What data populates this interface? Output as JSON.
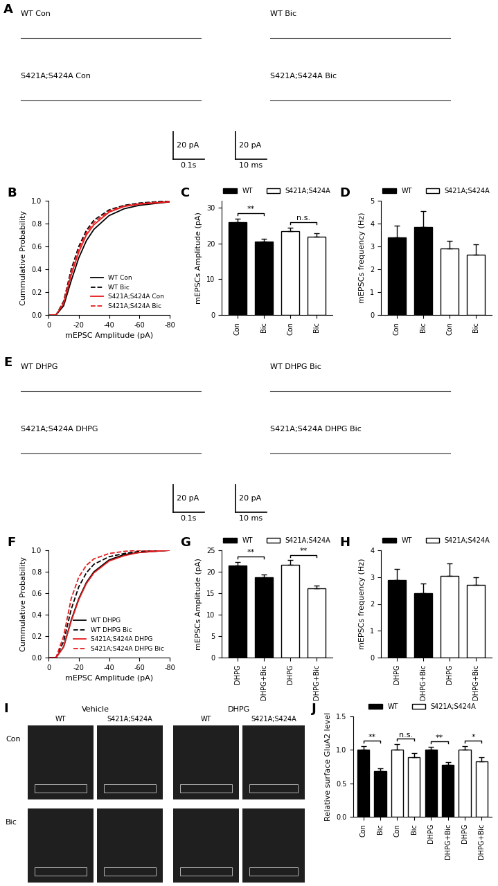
{
  "chart_data": [
    {
      "panel": "B",
      "type": "line",
      "x": [
        0,
        -5,
        -10,
        -15,
        -20,
        -25,
        -30,
        -40,
        -50,
        -60,
        -80
      ],
      "series": [
        {
          "name": "WT Con",
          "color": "#000000",
          "line_style": "solid",
          "values": [
            0,
            0,
            0.08,
            0.3,
            0.5,
            0.65,
            0.75,
            0.87,
            0.93,
            0.96,
            0.99
          ]
        },
        {
          "name": "WT Bic",
          "color": "#000000",
          "line_style": "dashed",
          "values": [
            0,
            0,
            0.12,
            0.4,
            0.6,
            0.74,
            0.83,
            0.92,
            0.96,
            0.98,
            1.0
          ]
        },
        {
          "name": "S421A;S424A Con",
          "color": "#e41a1c",
          "line_style": "solid",
          "values": [
            0,
            0,
            0.1,
            0.35,
            0.55,
            0.7,
            0.79,
            0.9,
            0.95,
            0.97,
            0.99
          ]
        },
        {
          "name": "S421A;S424A Bic",
          "color": "#e41a1c",
          "line_style": "dashed",
          "values": [
            0,
            0,
            0.11,
            0.38,
            0.58,
            0.72,
            0.81,
            0.91,
            0.955,
            0.975,
            0.995
          ]
        }
      ],
      "xlim": [
        0,
        -80
      ],
      "xticks": [
        0,
        -20,
        -40,
        -60,
        -80
      ],
      "ylim": [
        0,
        1.0
      ],
      "yticks": [
        {
          "value": 0,
          "label": "0.0"
        },
        0.2,
        0.4,
        0.6,
        0.8,
        {
          "value": 1,
          "label": "1.0"
        }
      ],
      "xlabel": "mEPSC Amplitude (pA)",
      "ylabel": "Cummulative Probability",
      "legend": "lower right"
    },
    {
      "panel": "C",
      "type": "bar",
      "categories": [
        "Con",
        "Bic",
        "Con",
        "Bic"
      ],
      "series": [
        {
          "name": "WT",
          "color": "#000000",
          "values": [
            26.0,
            20.5,
            null,
            null
          ],
          "errors": [
            1.0,
            0.8,
            null,
            null
          ]
        },
        {
          "name": "S421A;S424A",
          "color": "#ffffff",
          "values": [
            null,
            null,
            23.5,
            22.0
          ],
          "errors": [
            null,
            null,
            0.9,
            0.8
          ]
        }
      ],
      "ylim": [
        0,
        32
      ],
      "yticks": [
        0,
        10,
        20,
        30
      ],
      "ylabel": "mEPSCs Amplitude (pA)",
      "legend": "top",
      "annotations": [
        {
          "text": "**",
          "pair": [
            0,
            1
          ]
        },
        {
          "text": "n.s.",
          "pair": [
            2,
            3
          ]
        }
      ]
    },
    {
      "panel": "D",
      "type": "bar",
      "categories": [
        "Con",
        "Bic",
        "Con",
        "Bic"
      ],
      "series": [
        {
          "name": "WT",
          "color": "#000000",
          "values": [
            3.4,
            3.85,
            null,
            null
          ],
          "errors": [
            0.5,
            0.7,
            null,
            null
          ]
        },
        {
          "name": "S421A;S424A",
          "color": "#ffffff",
          "values": [
            null,
            null,
            2.9,
            2.65
          ],
          "errors": [
            null,
            null,
            0.35,
            0.45
          ]
        }
      ],
      "ylim": [
        0,
        5
      ],
      "yticks": [
        0,
        1,
        2,
        3,
        4,
        5
      ],
      "ylabel": "mEPSCs frequency (Hz)",
      "legend": "top"
    },
    {
      "panel": "F",
      "type": "line",
      "x": [
        0,
        -5,
        -10,
        -15,
        -20,
        -25,
        -30,
        -40,
        -50,
        -60,
        -80
      ],
      "series": [
        {
          "name": "WT DHPG",
          "color": "#000000",
          "line_style": "solid",
          "values": [
            0,
            0,
            0.1,
            0.35,
            0.55,
            0.7,
            0.8,
            0.91,
            0.96,
            0.98,
            1.0
          ]
        },
        {
          "name": "WT DHPG Bic",
          "color": "#000000",
          "line_style": "dashed",
          "values": [
            0,
            0,
            0.15,
            0.45,
            0.66,
            0.79,
            0.87,
            0.94,
            0.97,
            0.99,
            1.0
          ]
        },
        {
          "name": "S421A;S424A DHPG",
          "color": "#e41a1c",
          "line_style": "solid",
          "values": [
            0,
            0,
            0.1,
            0.34,
            0.54,
            0.69,
            0.79,
            0.9,
            0.95,
            0.98,
            1.0
          ]
        },
        {
          "name": "S421A;S424A DHPG Bic",
          "color": "#e41a1c",
          "line_style": "dashed",
          "values": [
            0,
            0,
            0.2,
            0.55,
            0.75,
            0.86,
            0.92,
            0.97,
            0.99,
            1.0,
            1.0
          ]
        }
      ],
      "xlim": [
        0,
        -80
      ],
      "xticks": [
        0,
        -20,
        -40,
        -60,
        -80
      ],
      "ylim": [
        0,
        1.0
      ],
      "yticks": [
        {
          "value": 0,
          "label": "0.0"
        },
        0.2,
        0.4,
        0.6,
        0.8,
        {
          "value": 1,
          "label": "1.0"
        }
      ],
      "xlabel": "mEPSC Amplitude (pA)",
      "ylabel": "Cummulative Probability",
      "legend": "lower right"
    },
    {
      "panel": "G",
      "type": "bar",
      "categories": [
        "DHPG",
        "DHPG+Bic",
        "DHPG",
        "DHPG+Bic"
      ],
      "series": [
        {
          "name": "WT",
          "color": "#000000",
          "values": [
            21.5,
            18.7,
            null,
            null
          ],
          "errors": [
            0.8,
            0.6,
            null,
            null
          ]
        },
        {
          "name": "S421A;S424A",
          "color": "#ffffff",
          "values": [
            null,
            null,
            21.6,
            16.1
          ],
          "errors": [
            null,
            null,
            1.1,
            0.6
          ]
        }
      ],
      "ylim": [
        0,
        25
      ],
      "yticks": [
        0,
        5,
        10,
        15,
        20,
        25
      ],
      "ylabel": "mEPSCs Amplitude (pA)",
      "legend": "top",
      "annotations": [
        {
          "text": "**",
          "pair": [
            0,
            1
          ]
        },
        {
          "text": "**",
          "pair": [
            2,
            3
          ]
        }
      ]
    },
    {
      "panel": "H",
      "type": "bar",
      "categories": [
        "DHPG",
        "DHPG+Bic",
        "DHPG",
        "DHPG+Bic"
      ],
      "series": [
        {
          "name": "WT",
          "color": "#000000",
          "values": [
            2.9,
            2.4,
            null,
            null
          ],
          "errors": [
            0.4,
            0.35,
            null,
            null
          ]
        },
        {
          "name": "S421A;S424A",
          "color": "#ffffff",
          "values": [
            null,
            null,
            3.05,
            2.7
          ],
          "errors": [
            null,
            null,
            0.45,
            0.3
          ]
        }
      ],
      "ylim": [
        0,
        4
      ],
      "yticks": [
        0,
        1,
        2,
        3,
        4
      ],
      "ylabel": "mEPSCs frequency (Hz)",
      "legend": "top"
    },
    {
      "panel": "J",
      "type": "bar",
      "categories": [
        "Con",
        "Bic",
        "Con",
        "Bic",
        "DHPG",
        "DHPG+Bic",
        "DHPG",
        "DHPG+Bic"
      ],
      "series": [
        {
          "name": "WT",
          "color": "#000000",
          "values": [
            1.0,
            0.68,
            null,
            null,
            1.0,
            0.78,
            null,
            null
          ],
          "errors": [
            0.06,
            0.04,
            null,
            null,
            0.05,
            0.04,
            null,
            null
          ]
        },
        {
          "name": "S421A;S424A",
          "color": "#ffffff",
          "values": [
            null,
            null,
            1.0,
            0.89,
            null,
            null,
            1.0,
            0.83
          ],
          "errors": [
            null,
            null,
            0.09,
            0.06,
            null,
            null,
            0.06,
            0.06
          ]
        }
      ],
      "ylim": [
        0,
        1.5
      ],
      "yticks": [
        {
          "value": 0,
          "label": "0.0"
        },
        0.5,
        {
          "value": 1,
          "label": "1.0"
        },
        1.5
      ],
      "ylabel": "Relative surface GluA2 level",
      "legend": "top",
      "annotations": [
        {
          "text": "**",
          "pair": [
            0,
            1
          ]
        },
        {
          "text": "n.s.",
          "pair": [
            2,
            3
          ]
        },
        {
          "text": "**",
          "pair": [
            4,
            5
          ]
        },
        {
          "text": "*",
          "pair": [
            6,
            7
          ]
        }
      ]
    }
  ],
  "traces": [
    {
      "panel": "A",
      "labels": [
        "WT Con",
        "WT Bic",
        "S421A;S424A Con",
        "S421A;S424A Bic"
      ],
      "scale_bars": [
        {
          "y": "20 pA",
          "x": "0.1s"
        },
        {
          "y": "20 pA",
          "x": "10 ms"
        }
      ]
    },
    {
      "panel": "E",
      "labels": [
        "WT DHPG",
        "WT DHPG Bic",
        "S421A;S424A DHPG",
        "S421A;S424A DHPG Bic"
      ],
      "scale_bars": [
        {
          "y": "20 pA",
          "x": "0.1s"
        },
        {
          "y": "20 pA",
          "x": "10 ms"
        }
      ]
    }
  ],
  "images": {
    "panel": "I",
    "conditions": [
      "Vehicle",
      "DHPG"
    ],
    "genotypes": [
      "WT",
      "S421A;S424A"
    ],
    "treatments": [
      "Con",
      "Bic"
    ]
  }
}
